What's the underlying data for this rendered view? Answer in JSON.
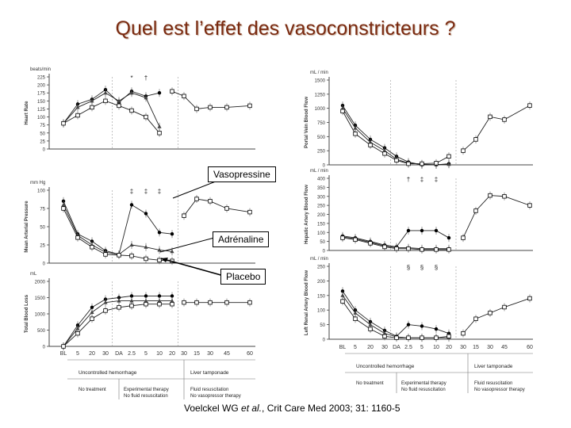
{
  "slide": {
    "title": "Quel est l’effet des vasoconstricteurs ?",
    "citation_pre": "Voelckel WG ",
    "citation_em": "et al.",
    "citation_post": ", Crit Care Med 2003; 31: 1160-5"
  },
  "callouts": {
    "vasopressin": "Vasopressine",
    "adrenaline": "Adrénaline",
    "placebo": "Placebo"
  },
  "x_ticks": [
    "BL",
    "5",
    "20",
    "30",
    "DA",
    "2.5",
    "5",
    "10",
    "20",
    "30",
    "15",
    "30",
    "45",
    "60"
  ],
  "phases": {
    "hemorrhage": "Uncontrolled hemorrhage",
    "tamponade": "Liver tamponade",
    "no_treatment": "No treatment",
    "experimental_1": "Experimental therapy",
    "experimental_2": "No fluid resuscitation",
    "fluid_1": "Fluid resuscitation",
    "fluid_2": "No vasopressor therapy"
  },
  "chart_data": [
    {
      "type": "line",
      "panel": "left-1",
      "unit": "beats/min",
      "ylabel": "Heart Rate",
      "yticks": [
        "225",
        "200",
        "175",
        "150",
        "125",
        "100",
        "75",
        "50",
        "25",
        "0"
      ],
      "ylim": [
        0,
        225
      ],
      "annotations": [
        "*",
        "†"
      ],
      "series": [
        {
          "values": [
            80,
            140,
            155,
            185,
            145,
            180,
            165,
            175,
            null,
            null,
            null,
            null,
            null,
            null
          ]
        },
        {
          "values": [
            80,
            130,
            150,
            175,
            150,
            175,
            160,
            70,
            null,
            null,
            null,
            null,
            null,
            null
          ]
        },
        {
          "values": [
            80,
            105,
            130,
            150,
            135,
            120,
            100,
            50,
            null,
            null,
            null,
            null,
            null,
            null
          ]
        },
        {
          "values": [
            null,
            null,
            null,
            null,
            null,
            null,
            null,
            null,
            180,
            165,
            125,
            130,
            130,
            135
          ]
        }
      ]
    },
    {
      "type": "line",
      "panel": "left-2",
      "unit": "mm Hg",
      "ylabel": "Mean Arterial Pressure",
      "yticks": [
        "100",
        "75",
        "50",
        "25",
        "0"
      ],
      "ylim": [
        0,
        100
      ],
      "annotations": [
        "‡",
        "‡",
        "‡"
      ],
      "series": [
        {
          "values": [
            85,
            40,
            30,
            17,
            12,
            80,
            68,
            42,
            40,
            null,
            null,
            null,
            null,
            null
          ]
        },
        {
          "values": [
            80,
            38,
            25,
            15,
            12,
            25,
            22,
            18,
            16,
            null,
            null,
            null,
            null,
            null
          ]
        },
        {
          "values": [
            75,
            35,
            22,
            12,
            11,
            10,
            6,
            4,
            3,
            null,
            null,
            null,
            null,
            null
          ]
        },
        {
          "values": [
            null,
            null,
            null,
            null,
            null,
            null,
            null,
            null,
            null,
            65,
            88,
            85,
            75,
            70
          ]
        }
      ]
    },
    {
      "type": "line",
      "panel": "left-3",
      "unit": "mL",
      "ylabel": "Total Blood Loss",
      "yticks": [
        "2000",
        "1500",
        "1000",
        "500",
        "0"
      ],
      "ylim": [
        0,
        2000
      ],
      "series": [
        {
          "values": [
            0,
            650,
            1200,
            1450,
            1500,
            1550,
            1550,
            1550,
            1550,
            null,
            null,
            null,
            null,
            null
          ]
        },
        {
          "values": [
            0,
            550,
            1050,
            1350,
            1400,
            1400,
            1400,
            1400,
            1400,
            null,
            null,
            null,
            null,
            null
          ]
        },
        {
          "values": [
            0,
            400,
            850,
            1100,
            1200,
            1250,
            1300,
            1300,
            1300,
            null,
            null,
            null,
            null,
            null
          ]
        },
        {
          "values": [
            null,
            null,
            null,
            null,
            null,
            null,
            null,
            null,
            null,
            1350,
            1350,
            1350,
            1350,
            1350
          ]
        }
      ]
    },
    {
      "type": "line",
      "panel": "right-1",
      "unit": "mL / min",
      "ylabel": "Portal Vein Blood Flow",
      "yticks": [
        "1500",
        "1250",
        "1000",
        "750",
        "500",
        "250",
        "0"
      ],
      "ylim": [
        0,
        1500
      ],
      "series": [
        {
          "values": [
            1050,
            700,
            450,
            300,
            150,
            50,
            0,
            0,
            20,
            null,
            null,
            null,
            null,
            null
          ]
        },
        {
          "values": [
            1000,
            650,
            400,
            250,
            100,
            30,
            10,
            5,
            10,
            null,
            null,
            null,
            null,
            null
          ]
        },
        {
          "values": [
            950,
            550,
            350,
            200,
            80,
            20,
            20,
            30,
            150,
            null,
            null,
            null,
            null,
            null
          ]
        },
        {
          "values": [
            null,
            null,
            null,
            null,
            null,
            null,
            null,
            null,
            null,
            250,
            450,
            850,
            800,
            1050
          ]
        }
      ]
    },
    {
      "type": "line",
      "panel": "right-2",
      "unit": "mL / min",
      "ylabel": "Hepatic Artery Blood Flow",
      "yticks": [
        "400",
        "350",
        "300",
        "250",
        "200",
        "150",
        "100",
        "50",
        "0"
      ],
      "ylim": [
        0,
        400
      ],
      "annotations": [
        "†",
        "‡",
        "‡"
      ],
      "series": [
        {
          "values": [
            80,
            70,
            50,
            30,
            20,
            110,
            110,
            110,
            70,
            null,
            null,
            null,
            null,
            null
          ]
        },
        {
          "values": [
            75,
            65,
            45,
            25,
            15,
            15,
            10,
            10,
            10,
            null,
            null,
            null,
            null,
            null
          ]
        },
        {
          "values": [
            70,
            60,
            40,
            20,
            10,
            10,
            5,
            5,
            5,
            null,
            null,
            null,
            null,
            null
          ]
        },
        {
          "values": [
            null,
            null,
            null,
            null,
            null,
            null,
            null,
            null,
            null,
            70,
            220,
            305,
            300,
            250
          ]
        }
      ]
    },
    {
      "type": "line",
      "panel": "right-3",
      "unit": "mL / min",
      "ylabel": "Left Renal Artery Blood Flow",
      "yticks": [
        "250",
        "200",
        "150",
        "100",
        "50",
        "0"
      ],
      "ylim": [
        0,
        250
      ],
      "annotations": [
        "§",
        "§",
        "§"
      ],
      "series": [
        {
          "values": [
            165,
            100,
            60,
            30,
            10,
            50,
            45,
            35,
            20,
            null,
            null,
            null,
            null,
            null
          ]
        },
        {
          "values": [
            150,
            90,
            50,
            20,
            8,
            5,
            5,
            5,
            5,
            null,
            null,
            null,
            null,
            null
          ]
        },
        {
          "values": [
            130,
            70,
            35,
            10,
            5,
            5,
            5,
            5,
            10,
            null,
            null,
            null,
            null,
            null
          ]
        },
        {
          "values": [
            null,
            null,
            null,
            null,
            null,
            null,
            null,
            null,
            null,
            20,
            70,
            90,
            110,
            140
          ]
        }
      ]
    }
  ]
}
